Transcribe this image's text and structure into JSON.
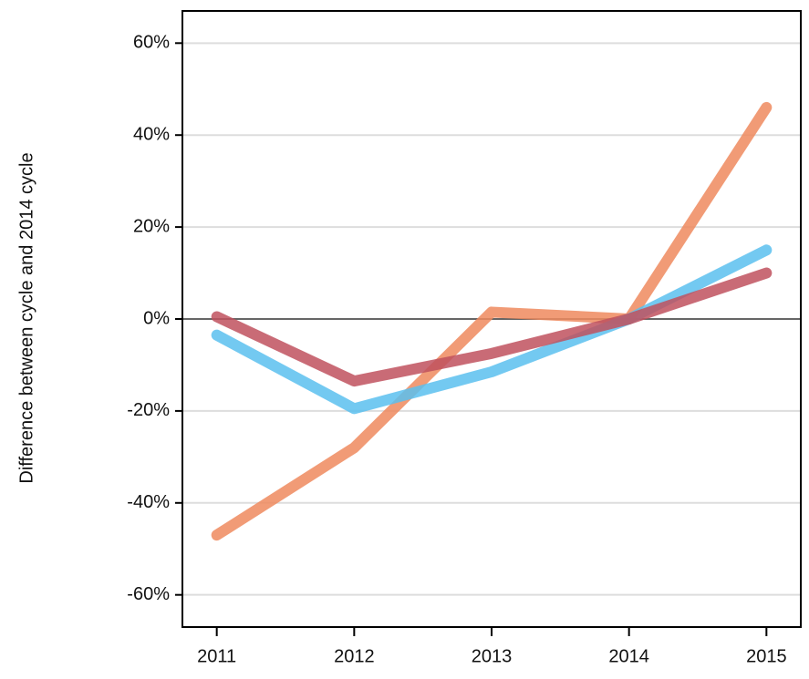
{
  "chart_data": {
    "type": "line",
    "y_label": "Difference between cycle and 2014 cycle",
    "x": [
      2011,
      2012,
      2013,
      2014,
      2015
    ],
    "xlim": [
      2010.75,
      2015.25
    ],
    "xticks": [
      2011,
      2012,
      2013,
      2014,
      2015
    ],
    "ylim": [
      -67,
      67
    ],
    "yticks": [
      {
        "value": -60,
        "label": "-60%"
      },
      {
        "value": -40,
        "label": "-40%"
      },
      {
        "value": -20,
        "label": "-20%"
      },
      {
        "value": 0,
        "label": "0%"
      },
      {
        "value": 20,
        "label": "20%"
      },
      {
        "value": 40,
        "label": "40%"
      },
      {
        "value": 60,
        "label": "60%"
      }
    ],
    "grid": true,
    "series": [
      {
        "color": "#ee8a5e",
        "values": [
          -47,
          -28,
          1.5,
          0,
          46
        ]
      },
      {
        "color": "#5bbfef",
        "values": [
          -3.5,
          -19.5,
          -11.5,
          0,
          15
        ]
      },
      {
        "color": "#c0515e",
        "values": [
          0.5,
          -13.5,
          -7.5,
          0,
          10
        ]
      }
    ]
  }
}
